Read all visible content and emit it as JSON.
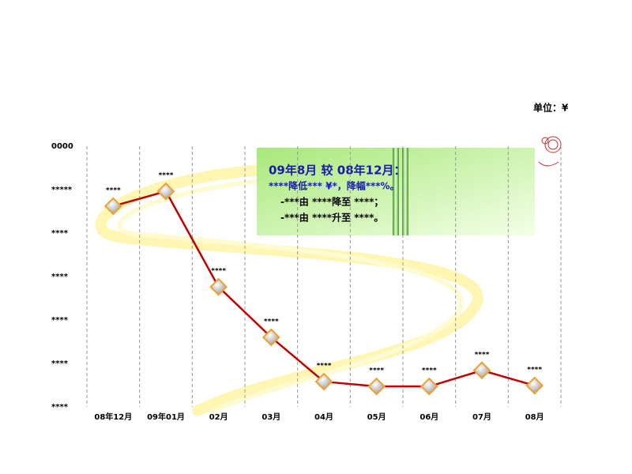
{
  "chart_data": {
    "type": "line",
    "unit_label": "单位：¥",
    "categories": [
      "08年12月",
      "09年01月",
      "02月",
      "03月",
      "04月",
      "05月",
      "06月",
      "07月",
      "08月"
    ],
    "series": [
      {
        "color": "#c00000",
        "values": [
          4.62,
          4.96,
          2.76,
          1.6,
          0.58,
          0.47,
          0.47,
          0.84,
          0.49
        ],
        "value_labels": [
          "****",
          "****",
          "****",
          "****",
          "****",
          "****",
          "****",
          "****",
          "****"
        ]
      }
    ],
    "marker_edge_color": "#f0a030",
    "ylim": [
      0,
      6
    ],
    "yticks": [
      {
        "value": 0,
        "label": "****"
      },
      {
        "value": 1,
        "label": "****"
      },
      {
        "value": 2,
        "label": "****"
      },
      {
        "value": 3,
        "label": "****"
      },
      {
        "value": 4,
        "label": "****"
      },
      {
        "value": 5,
        "label": "*****"
      },
      {
        "value": 6,
        "label": "0000"
      }
    ],
    "category_dividers": true,
    "annotation": [
      "09年8月 较 08年12月：",
      "****降低*** ¥*，降幅***%。",
      "-***由 ****降至 ****；",
      "-***由 ****升至 ****。"
    ]
  }
}
